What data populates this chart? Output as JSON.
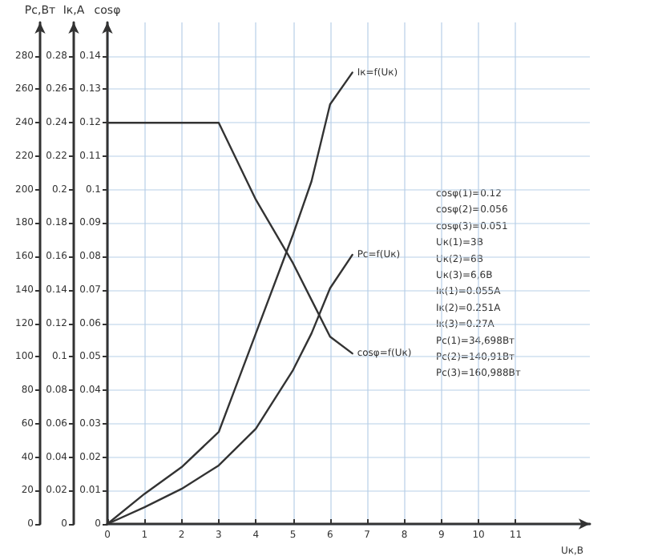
{
  "chart_data": {
    "type": "line",
    "xlabel": "Uк,В",
    "ylabel": "Pc,Вт",
    "y2label": "Iк,A",
    "y3label": "cosφ",
    "xlim": [
      0,
      13
    ],
    "xticks": [
      0,
      1,
      2,
      3,
      4,
      5,
      6,
      7,
      8,
      9,
      10,
      11
    ],
    "ylim": [
      0,
      300
    ],
    "yticks": [
      0,
      20,
      40,
      60,
      80,
      100,
      120,
      140,
      160,
      180,
      200,
      220,
      240,
      260,
      280
    ],
    "y2lim": [
      0,
      0.3
    ],
    "y2ticks": [
      0,
      0.02,
      0.04,
      0.06,
      0.08,
      0.1,
      0.12,
      0.14,
      0.16,
      0.18,
      0.2,
      0.22,
      0.24,
      0.26,
      0.28
    ],
    "y3lim": [
      0,
      0.15
    ],
    "y3ticks": [
      0,
      0.01,
      0.02,
      0.03,
      0.04,
      0.05,
      0.06,
      0.07,
      0.08,
      0.09,
      0.1,
      0.11,
      0.12,
      0.13,
      0.14
    ],
    "x": [
      0,
      1,
      2,
      3,
      4,
      5,
      5.5,
      6,
      6.6
    ],
    "series": [
      {
        "name": "cosφ=f(Uк)",
        "color": "#333333",
        "axis": "y3",
        "values": [
          0.12,
          0.12,
          0.12,
          0.12,
          0.097,
          0.078,
          0.067,
          0.056,
          0.051
        ]
      },
      {
        "name": "Iк=f(Uк)",
        "color": "#333333",
        "axis": "y2",
        "values": [
          0,
          0.018,
          0.034,
          0.055,
          0.114,
          0.173,
          0.205,
          0.251,
          0.27
        ]
      },
      {
        "name": "Pc=f(Uк)",
        "color": "#333333",
        "axis": "y",
        "values": [
          0,
          10,
          21,
          35,
          57,
          92,
          114,
          141,
          161
        ]
      }
    ],
    "annotations": [
      "cosφ(1)=0.12",
      "cosφ(2)=0.056",
      "cosφ(3)=0.051",
      "Uк(1)=3В",
      "Uк(2)=6В",
      "Uк(3)=6,6В",
      "Iк(1)=0.055A",
      "Iк(2)=0.251A",
      "Iк(3)=0.27A",
      "Pc(1)=34,698Вт",
      "Pc(2)=140,91Вт",
      "Pc(3)=160,988Вт"
    ],
    "grid": true,
    "legend": false,
    "marker": "none",
    "line_style": "solid"
  }
}
